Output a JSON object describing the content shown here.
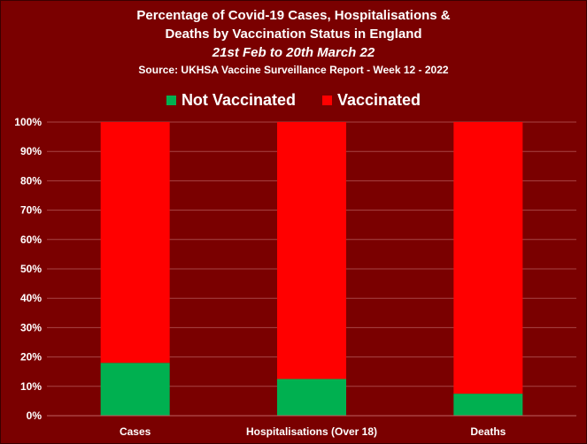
{
  "chart_data": {
    "type": "bar",
    "stacked": true,
    "title_lines": [
      "Percentage of Covid-19 Cases, Hospitalisations &",
      "Deaths by Vaccination Status in England"
    ],
    "subtitle": "21st Feb to 20th March 22",
    "source": "Source: UKHSA Vaccine Surveillance Report - Week 12 - 2022",
    "categories": [
      "Cases",
      "Hospitalisations (Over 18)",
      "Deaths"
    ],
    "series": [
      {
        "name": "Not Vaccinated",
        "color": "#00b050",
        "values": [
          18,
          12.5,
          7.5
        ]
      },
      {
        "name": "Vaccinated",
        "color": "#ff0000",
        "values": [
          82,
          87.5,
          92.5
        ]
      }
    ],
    "ylim": [
      0,
      100
    ],
    "y_ticks": [
      "0%",
      "10%",
      "20%",
      "30%",
      "40%",
      "50%",
      "60%",
      "70%",
      "80%",
      "90%",
      "100%"
    ],
    "grid": true,
    "legend_position": "top"
  }
}
